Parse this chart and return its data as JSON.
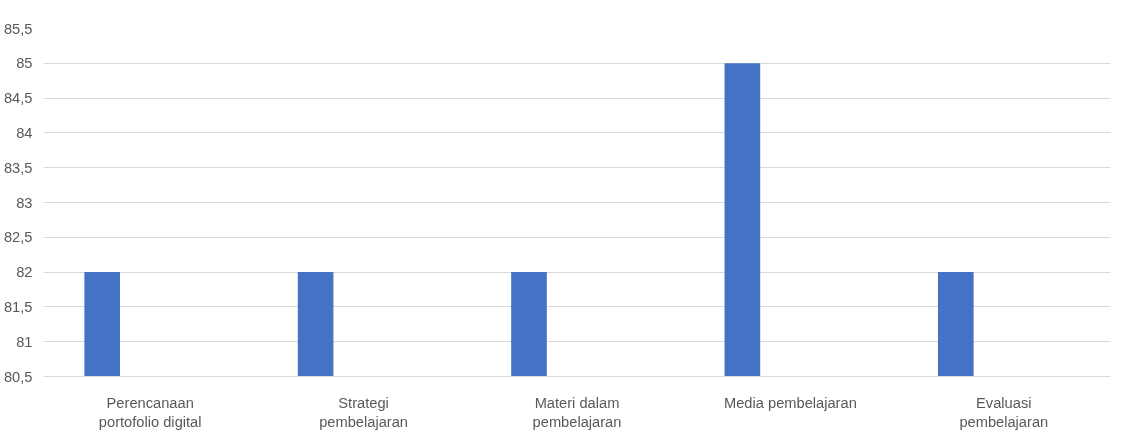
{
  "chart_data": {
    "type": "bar",
    "categories": [
      "Perencanaan portofolio digital",
      "Strategi pembelajaran",
      "Materi dalam pembelajaran",
      "Media pembelajaran",
      "Evaluasi pembelajaran"
    ],
    "values": [
      82,
      82,
      82,
      85,
      82
    ],
    "color": "#4472c4",
    "ylim": [
      80.5,
      85.5
    ],
    "yticks": [
      {
        "value": 80.5,
        "label": "80,5"
      },
      81,
      {
        "value": 81.5,
        "label": "81,5"
      },
      82,
      {
        "value": 82.5,
        "label": "82,5"
      },
      83,
      {
        "value": 83.5,
        "label": "83,5"
      },
      84,
      {
        "value": 84.5,
        "label": "84,5"
      },
      85,
      {
        "value": 85.5,
        "label": "85,5"
      }
    ],
    "grid": "y"
  }
}
